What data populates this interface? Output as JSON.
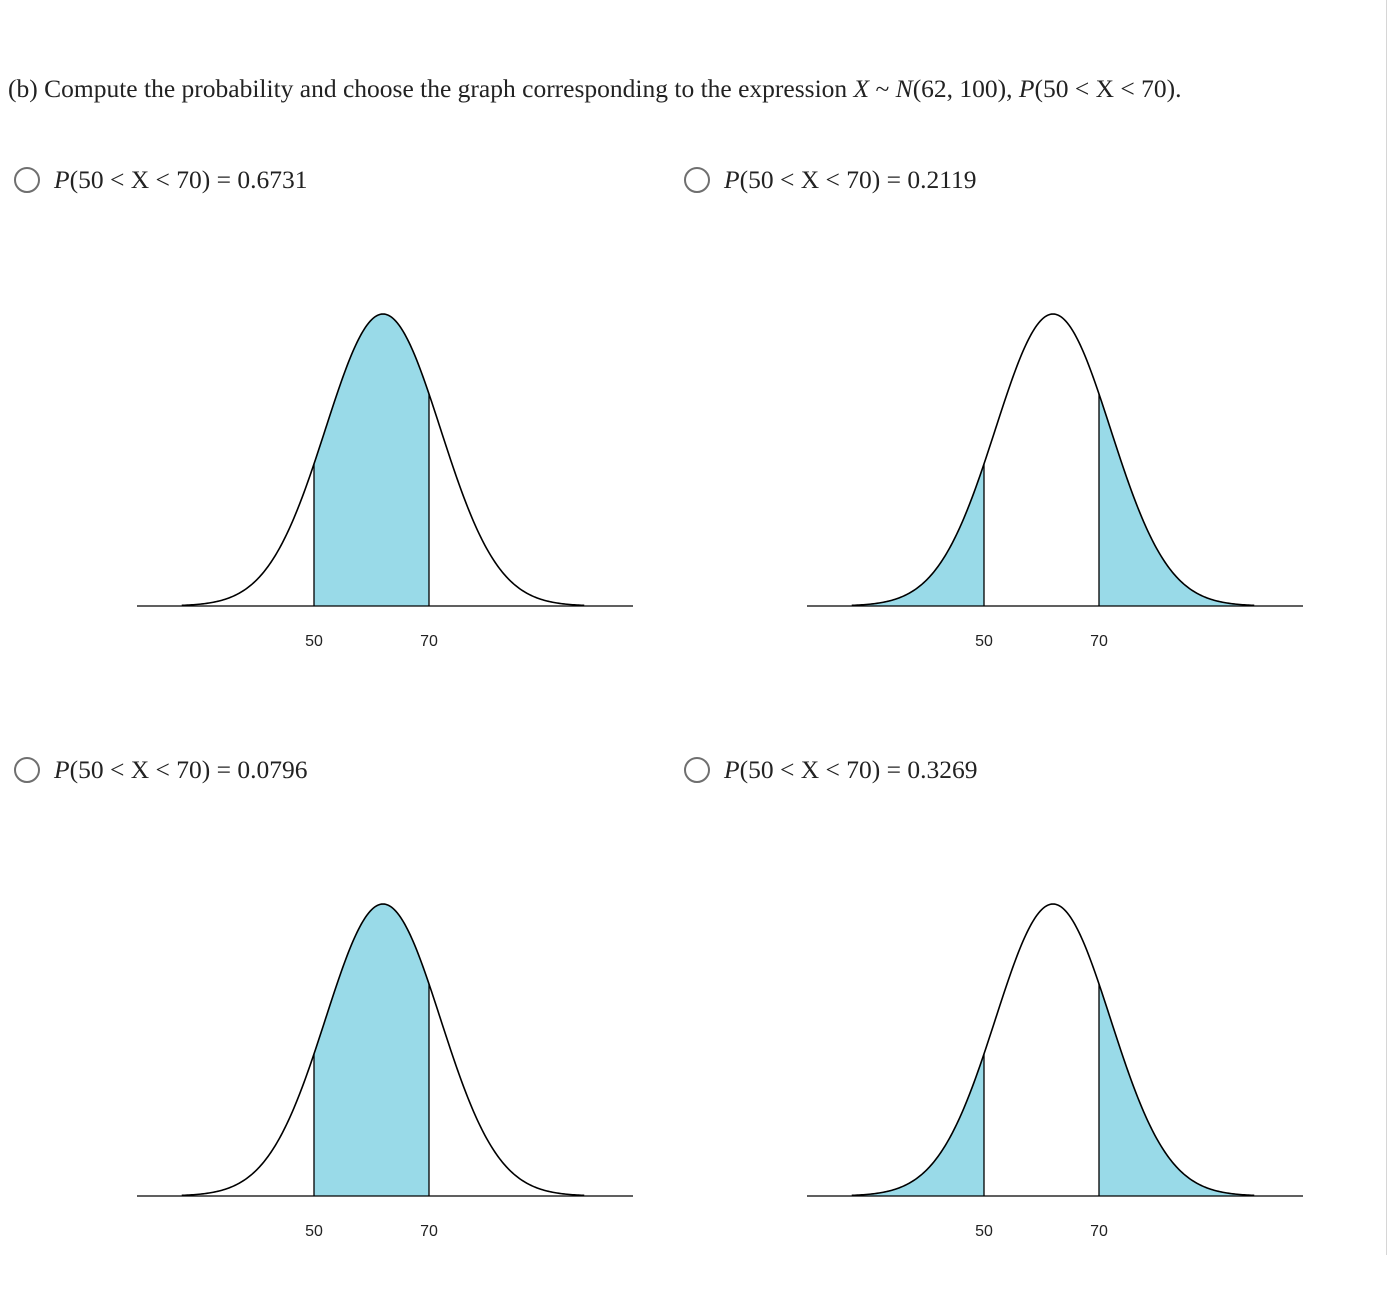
{
  "question": {
    "prefix": "(b) Compute the probability and choose the graph corresponding to the expression ",
    "var": "X",
    "tilde": " ~ ",
    "dist_name": "N",
    "dist_params": "(62, 100), ",
    "prob_fn": "P",
    "prob_expr": "(50 < X < 70)."
  },
  "options": [
    {
      "prob_fn": "P",
      "expr": "(50 < X < 70) = 0.6731",
      "shade": "between"
    },
    {
      "prob_fn": "P",
      "expr": "(50 < X < 70) = 0.2119",
      "shade": "tails"
    },
    {
      "prob_fn": "P",
      "expr": "(50 < X < 70) = 0.0796",
      "shade": "between"
    },
    {
      "prob_fn": "P",
      "expr": "(50 < X < 70) = 0.3269",
      "shade": "tails"
    }
  ],
  "chart_data": [
    {
      "type": "area",
      "distribution": "normal",
      "mean": 62,
      "sd": 10,
      "x_ticks": [
        50,
        70
      ],
      "xlim": [
        27,
        97
      ],
      "shaded": "between 50 and 70",
      "fill_color": "#99dae8",
      "tick_labels": [
        "50",
        "70"
      ]
    },
    {
      "type": "area",
      "distribution": "normal",
      "mean": 62,
      "sd": 10,
      "x_ticks": [
        50,
        70
      ],
      "xlim": [
        27,
        97
      ],
      "shaded": "below 50 and above 70",
      "fill_color": "#99dae8",
      "tick_labels": [
        "50",
        "70"
      ]
    },
    {
      "type": "area",
      "distribution": "normal",
      "mean": 62,
      "sd": 10,
      "x_ticks": [
        50,
        70
      ],
      "xlim": [
        27,
        97
      ],
      "shaded": "between 50 and 70",
      "fill_color": "#99dae8",
      "tick_labels": [
        "50",
        "70"
      ]
    },
    {
      "type": "area",
      "distribution": "normal",
      "mean": 62,
      "sd": 10,
      "x_ticks": [
        50,
        70
      ],
      "xlim": [
        27,
        97
      ],
      "shaded": "below 50 and above 70",
      "fill_color": "#99dae8",
      "tick_labels": [
        "50",
        "70"
      ]
    }
  ]
}
